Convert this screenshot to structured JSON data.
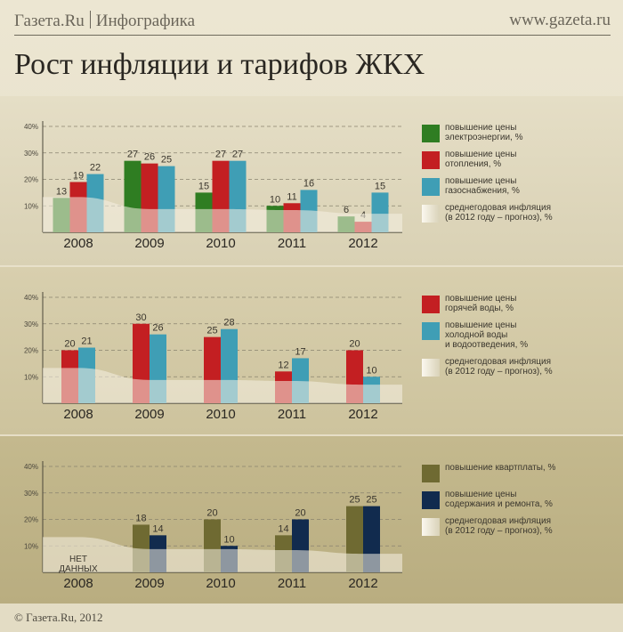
{
  "header": {
    "brand": "Газета.Ru",
    "section": "Инфографика",
    "url": "www.gazeta.ru"
  },
  "title": "Рост инфляции и тарифов ЖКХ",
  "footer": "© Газета.Ru, 2012",
  "colors": {
    "green": "#2f7d22",
    "red": "#c31f22",
    "teal": "#3f9eb5",
    "olive": "#6f6a32",
    "navy": "#112b4e",
    "inflation_area": "#f3efe3"
  },
  "chart_data": [
    {
      "type": "bar",
      "categories": [
        "2008",
        "2009",
        "2010",
        "2011",
        "2012"
      ],
      "ylim": [
        0,
        40
      ],
      "yticks": [
        "10%",
        "20%",
        "30%",
        "40%"
      ],
      "series": [
        {
          "name": "повышение цены электроэнергии, %",
          "color": "#2f7d22",
          "values": [
            13,
            27,
            15,
            10,
            6
          ]
        },
        {
          "name": "повышение цены отопления, %",
          "color": "#c31f22",
          "values": [
            19,
            26,
            27,
            11,
            4
          ]
        },
        {
          "name": "повышение цены газоснабжения, %",
          "color": "#3f9eb5",
          "values": [
            22,
            25,
            27,
            16,
            15
          ]
        }
      ],
      "inflation": {
        "name": "среднегодовая инфляция (в 2012 году – прогноз), %",
        "values": [
          13.3,
          8.8,
          8.8,
          8.4,
          7.0
        ]
      },
      "legend": [
        {
          "lines": [
            "повышение цены",
            "электроэнергии, %"
          ],
          "color": "#2f7d22"
        },
        {
          "lines": [
            "повышение цены",
            "отопления, %"
          ],
          "color": "#c31f22"
        },
        {
          "lines": [
            "повышение цены",
            "газоснабжения, %"
          ],
          "color": "#3f9eb5"
        },
        {
          "lines": [
            "среднегодовая инфляция",
            "(в 2012 году – прогноз), %"
          ],
          "color": "#f3efe3"
        }
      ]
    },
    {
      "type": "bar",
      "categories": [
        "2008",
        "2009",
        "2010",
        "2011",
        "2012"
      ],
      "ylim": [
        0,
        40
      ],
      "yticks": [
        "10%",
        "20%",
        "30%",
        "40%"
      ],
      "series": [
        {
          "name": "повышение цены горячей воды, %",
          "color": "#c31f22",
          "values": [
            20,
            30,
            25,
            12,
            20
          ]
        },
        {
          "name": "повышение цены холодной воды и водоотведения, %",
          "color": "#3f9eb5",
          "values": [
            21,
            26,
            28,
            17,
            10
          ]
        }
      ],
      "inflation": {
        "name": "среднегодовая инфляция (в 2012 году – прогноз), %",
        "values": [
          13.3,
          8.8,
          8.8,
          8.4,
          7.0
        ]
      },
      "legend": [
        {
          "lines": [
            "повышение цены",
            "горячей воды, %"
          ],
          "color": "#c31f22"
        },
        {
          "lines": [
            "повышение цены",
            "холодной воды",
            "и водоотведения, %"
          ],
          "color": "#3f9eb5"
        },
        {
          "lines": [
            "среднегодовая инфляция",
            "(в 2012 году – прогноз), %"
          ],
          "color": "#f3efe3"
        }
      ]
    },
    {
      "type": "bar",
      "categories": [
        "2008",
        "2009",
        "2010",
        "2011",
        "2012"
      ],
      "ylim": [
        0,
        40
      ],
      "yticks": [
        "10%",
        "20%",
        "30%",
        "40%"
      ],
      "series": [
        {
          "name": "повышение квартплаты, %",
          "color": "#6f6a32",
          "values": [
            null,
            18,
            20,
            14,
            25
          ]
        },
        {
          "name": "повышение цены содержания и ремонта, %",
          "color": "#112b4e",
          "values": [
            null,
            14,
            10,
            20,
            25
          ]
        }
      ],
      "no_data_note": [
        "НЕТ",
        "ДАННЫХ"
      ],
      "inflation": {
        "name": "среднегодовая инфляция (в 2012 году – прогноз), %",
        "values": [
          13.3,
          8.8,
          8.8,
          8.4,
          7.0
        ]
      },
      "legend": [
        {
          "lines": [
            "повышение квартплаты, %"
          ],
          "color": "#6f6a32"
        },
        {
          "lines": [
            "повышение цены",
            "содержания и ремонта, %"
          ],
          "color": "#112b4e"
        },
        {
          "lines": [
            "среднегодовая инфляция",
            "(в 2012 году – прогноз), %"
          ],
          "color": "#f3efe3"
        }
      ]
    }
  ]
}
